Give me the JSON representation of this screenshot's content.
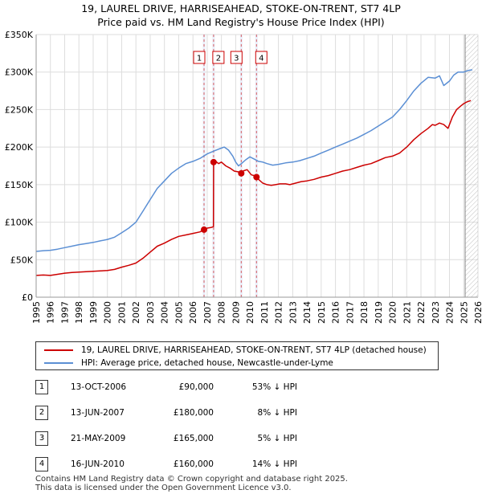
{
  "chart_data": {
    "type": "line",
    "title": "19, LAUREL DRIVE, HARRISEAHEAD, STOKE-ON-TRENT, ST7 4LP",
    "subtitle": "Price paid vs. HM Land Registry's House Price Index (HPI)",
    "xlim": [
      1995,
      2026
    ],
    "ylim": [
      0,
      350000
    ],
    "x_ticks": [
      "1995",
      "1996",
      "1997",
      "1998",
      "1999",
      "2000",
      "2001",
      "2002",
      "2003",
      "2004",
      "2005",
      "2006",
      "2007",
      "2008",
      "2009",
      "2010",
      "2011",
      "2012",
      "2013",
      "2014",
      "2015",
      "2016",
      "2017",
      "2018",
      "2019",
      "2020",
      "2021",
      "2022",
      "2023",
      "2024",
      "2025",
      "2026"
    ],
    "y_ticks": [
      {
        "value": 0,
        "label": "£0"
      },
      {
        "value": 50000,
        "label": "£50K"
      },
      {
        "value": 100000,
        "label": "£100K"
      },
      {
        "value": 150000,
        "label": "£150K"
      },
      {
        "value": 200000,
        "label": "£200K"
      },
      {
        "value": 250000,
        "label": "£250K"
      },
      {
        "value": 300000,
        "label": "£300K"
      },
      {
        "value": 350000,
        "label": "£350K"
      }
    ],
    "grid": true,
    "forecast_from": 2025.1,
    "series": [
      {
        "name": "19, LAUREL DRIVE, HARRISEAHEAD, STOKE-ON-TRENT, ST7 4LP (detached house)",
        "color": "#cc0000",
        "x": [
          1995.0,
          1995.5,
          1996.0,
          1996.5,
          1997.0,
          1997.5,
          1998.0,
          1998.5,
          1999.0,
          1999.5,
          2000.0,
          2000.5,
          2001.0,
          2001.5,
          2002.0,
          2002.5,
          2003.0,
          2003.5,
          2004.0,
          2004.5,
          2005.0,
          2005.5,
          2006.0,
          2006.5,
          2006.78,
          2006.79,
          2007.0,
          2007.3,
          2007.44,
          2007.45,
          2007.6,
          2007.8,
          2008.0,
          2008.3,
          2008.6,
          2008.9,
          2009.2,
          2009.39,
          2009.5,
          2009.8,
          2010.1,
          2010.3,
          2010.46,
          2010.6,
          2010.9,
          2011.2,
          2011.5,
          2011.8,
          2012.1,
          2012.5,
          2012.8,
          2013.2,
          2013.6,
          2014.0,
          2014.5,
          2015.0,
          2015.5,
          2016.0,
          2016.5,
          2017.0,
          2017.5,
          2018.0,
          2018.5,
          2019.0,
          2019.5,
          2020.0,
          2020.5,
          2021.0,
          2021.5,
          2022.0,
          2022.5,
          2022.8,
          2023.0,
          2023.3,
          2023.6,
          2023.9,
          2024.2,
          2024.5,
          2024.8,
          2025.0,
          2025.2,
          2025.5
        ],
        "values": [
          29000,
          29500,
          29000,
          30500,
          32000,
          33000,
          33500,
          34000,
          34500,
          35000,
          35500,
          37000,
          40000,
          42500,
          45500,
          52000,
          60000,
          68000,
          72000,
          77000,
          81000,
          83000,
          85000,
          87000,
          90000,
          90000,
          92000,
          93000,
          94000,
          180000,
          181000,
          178000,
          180000,
          175000,
          172000,
          168000,
          167000,
          165000,
          168000,
          170000,
          163000,
          162000,
          160000,
          157000,
          152000,
          150000,
          149000,
          150000,
          151000,
          151000,
          150000,
          152000,
          154000,
          155000,
          157000,
          160000,
          162000,
          165000,
          168000,
          170000,
          173000,
          176000,
          178000,
          182000,
          186000,
          188000,
          192000,
          200000,
          210000,
          218000,
          225000,
          230000,
          229000,
          232000,
          230000,
          225000,
          240000,
          250000,
          255000,
          258000,
          260000,
          262000
        ]
      },
      {
        "name": "HPI: Average price, detached house, Newcastle-under-Lyme",
        "color": "#5b8fd4",
        "x": [
          1995.0,
          1995.5,
          1996.0,
          1996.5,
          1997.0,
          1997.5,
          1998.0,
          1998.5,
          1999.0,
          1999.5,
          2000.0,
          2000.5,
          2001.0,
          2001.5,
          2002.0,
          2002.5,
          2003.0,
          2003.5,
          2004.0,
          2004.5,
          2005.0,
          2005.5,
          2006.0,
          2006.5,
          2007.0,
          2007.5,
          2007.9,
          2008.2,
          2008.5,
          2008.8,
          2009.0,
          2009.2,
          2009.4,
          2009.7,
          2010.0,
          2010.3,
          2010.6,
          2010.9,
          2011.2,
          2011.6,
          2012.0,
          2012.5,
          2013.0,
          2013.5,
          2014.0,
          2014.5,
          2015.0,
          2015.5,
          2016.0,
          2016.5,
          2017.0,
          2017.5,
          2018.0,
          2018.5,
          2019.0,
          2019.5,
          2020.0,
          2020.5,
          2021.0,
          2021.5,
          2022.0,
          2022.5,
          2023.0,
          2023.3,
          2023.6,
          2024.0,
          2024.3,
          2024.6,
          2025.0,
          2025.3,
          2025.6
        ],
        "values": [
          61000,
          62000,
          62500,
          64000,
          66000,
          68000,
          70000,
          71500,
          73000,
          75000,
          77000,
          80000,
          86000,
          92000,
          100000,
          115000,
          130000,
          145000,
          155000,
          165000,
          172000,
          178000,
          181000,
          185000,
          191000,
          195000,
          198000,
          200000,
          196000,
          188000,
          180000,
          175000,
          178000,
          183000,
          187000,
          184000,
          181000,
          180000,
          178000,
          176000,
          177000,
          179000,
          180000,
          182000,
          185000,
          188000,
          192000,
          196000,
          200000,
          204000,
          208000,
          212000,
          217000,
          222000,
          228000,
          234000,
          240000,
          250000,
          262000,
          275000,
          285000,
          293000,
          292000,
          295000,
          282000,
          288000,
          296000,
          300000,
          300000,
          302000,
          303000
        ]
      }
    ],
    "sales": [
      {
        "id": "1",
        "x": 2006.78,
        "value": 90000,
        "date": "13-OCT-2006",
        "price": "£90,000",
        "hpi": "53% ↓ HPI"
      },
      {
        "id": "2",
        "x": 2007.45,
        "value": 180000,
        "date": "13-JUN-2007",
        "price": "£180,000",
        "hpi": "8% ↓ HPI"
      },
      {
        "id": "3",
        "x": 2009.39,
        "value": 165000,
        "date": "21-MAY-2009",
        "price": "£165,000",
        "hpi": "5% ↓ HPI"
      },
      {
        "id": "4",
        "x": 2010.46,
        "value": 160000,
        "date": "16-JUN-2010",
        "price": "£160,000",
        "hpi": "14% ↓ HPI"
      }
    ]
  },
  "legend": {
    "property_label": "19, LAUREL DRIVE, HARRISEAHEAD, STOKE-ON-TRENT, ST7 4LP (detached house)",
    "hpi_label": "HPI: Average price, detached house, Newcastle-under-Lyme"
  },
  "footer": {
    "line1": "Contains HM Land Registry data © Crown copyright and database right 2025.",
    "line2": "This data is licensed under the Open Government Licence v3.0."
  }
}
